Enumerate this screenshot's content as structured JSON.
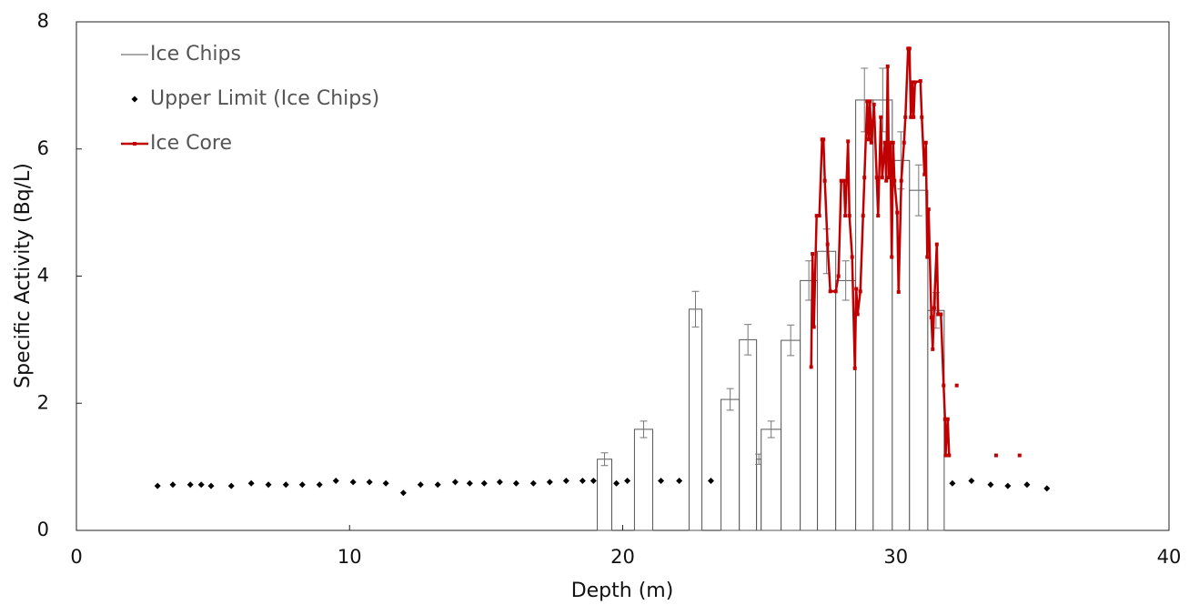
{
  "chart_data": {
    "type": "combo",
    "x_label": "Depth (m)",
    "y_label": "Specific Activity (Bq/L)",
    "xlim": [
      0,
      40
    ],
    "xticks": [
      0,
      10,
      20,
      30,
      40
    ],
    "ylim": [
      0,
      8
    ],
    "yticks": [
      0,
      2,
      4,
      6,
      8
    ],
    "legend": "upper left",
    "series": [
      {
        "name": "Ice Chips",
        "kind": "bar",
        "color": "#555555",
        "x_start": [
          19.07,
          20.43,
          22.43,
          23.6,
          24.27,
          24.9,
          25.07,
          25.8,
          26.5,
          27.13,
          27.8,
          28.53,
          29.17,
          29.87,
          30.5,
          31.17
        ],
        "x_end": [
          19.6,
          21.1,
          22.9,
          24.27,
          24.9,
          25.07,
          25.8,
          26.5,
          27.13,
          27.8,
          28.53,
          29.17,
          29.87,
          30.5,
          31.17,
          31.77
        ],
        "values": [
          1.12,
          1.59,
          3.48,
          2.06,
          3.0,
          1.12,
          1.59,
          2.99,
          3.93,
          4.39,
          3.93,
          6.77,
          6.77,
          5.82,
          5.35,
          3.46
        ],
        "errors": [
          0.1,
          0.13,
          0.28,
          0.17,
          0.24,
          0.08,
          0.13,
          0.24,
          0.31,
          0.35,
          0.31,
          0.5,
          0.5,
          0.45,
          0.4,
          0.28
        ]
      },
      {
        "name": "Upper Limit (Ice Chips)",
        "kind": "scatter",
        "color": "#000000",
        "x": [
          2.97,
          3.53,
          4.17,
          4.57,
          4.93,
          5.67,
          6.4,
          7.03,
          7.67,
          8.27,
          8.9,
          9.5,
          10.13,
          10.73,
          11.33,
          11.97,
          12.6,
          13.23,
          13.87,
          14.4,
          14.93,
          15.5,
          16.1,
          16.73,
          17.33,
          17.93,
          18.53,
          18.93,
          19.77,
          20.17,
          21.4,
          22.07,
          23.23,
          32.07,
          32.77,
          33.47,
          34.1,
          34.8,
          35.53
        ],
        "values": [
          0.7,
          0.72,
          0.72,
          0.72,
          0.7,
          0.7,
          0.74,
          0.72,
          0.72,
          0.72,
          0.72,
          0.78,
          0.76,
          0.76,
          0.74,
          0.59,
          0.72,
          0.72,
          0.76,
          0.74,
          0.74,
          0.76,
          0.74,
          0.74,
          0.76,
          0.78,
          0.78,
          0.78,
          0.74,
          0.78,
          0.78,
          0.78,
          0.78,
          0.74,
          0.78,
          0.72,
          0.7,
          0.72,
          0.66
        ]
      },
      {
        "name": "Ice Core",
        "kind": "line",
        "color": "#c00000",
        "x": [
          26.9,
          26.95,
          27.0,
          27.1,
          27.2,
          27.3,
          27.35,
          27.4,
          27.5,
          27.6,
          27.8,
          27.9,
          28.0,
          28.1,
          28.15,
          28.25,
          28.3,
          28.4,
          28.5,
          28.55,
          28.6,
          28.7,
          28.8,
          28.85,
          28.95,
          29.0,
          29.05,
          29.1,
          29.2,
          29.3,
          29.35,
          29.45,
          29.5,
          29.6,
          29.65,
          29.7,
          29.75,
          29.8,
          29.85,
          29.9,
          29.95,
          30.05,
          30.1,
          30.2,
          30.3,
          30.35,
          30.45,
          30.5,
          30.55,
          30.6,
          30.65,
          30.7,
          30.9,
          30.95,
          31.05,
          31.1,
          31.15,
          31.2,
          31.3,
          31.35,
          31.4,
          31.5,
          31.55,
          31.65,
          31.75,
          31.8,
          31.82,
          31.9,
          31.95,
          null,
          32.23,
          null,
          33.67,
          null,
          34.53
        ],
        "values": [
          2.57,
          4.35,
          3.2,
          4.95,
          4.95,
          6.15,
          6.15,
          5.5,
          4.5,
          3.76,
          3.76,
          4.0,
          5.5,
          5.5,
          4.95,
          6.12,
          4.95,
          4.3,
          2.55,
          3.8,
          3.4,
          3.76,
          4.95,
          5.55,
          6.75,
          6.15,
          6.75,
          6.1,
          6.7,
          5.55,
          4.95,
          6.5,
          5.55,
          6.1,
          5.5,
          7.3,
          5.55,
          6.1,
          4.3,
          6.1,
          5.5,
          5.0,
          3.75,
          5.5,
          6.1,
          6.5,
          7.58,
          7.58,
          6.5,
          7.05,
          6.5,
          7.05,
          7.07,
          6.5,
          5.6,
          6.1,
          4.3,
          5.05,
          3.35,
          2.85,
          3.5,
          4.5,
          3.4,
          3.4,
          2.28,
          1.75,
          1.18,
          1.75,
          1.18,
          null,
          2.28,
          null,
          1.18,
          null,
          1.18
        ]
      }
    ]
  }
}
